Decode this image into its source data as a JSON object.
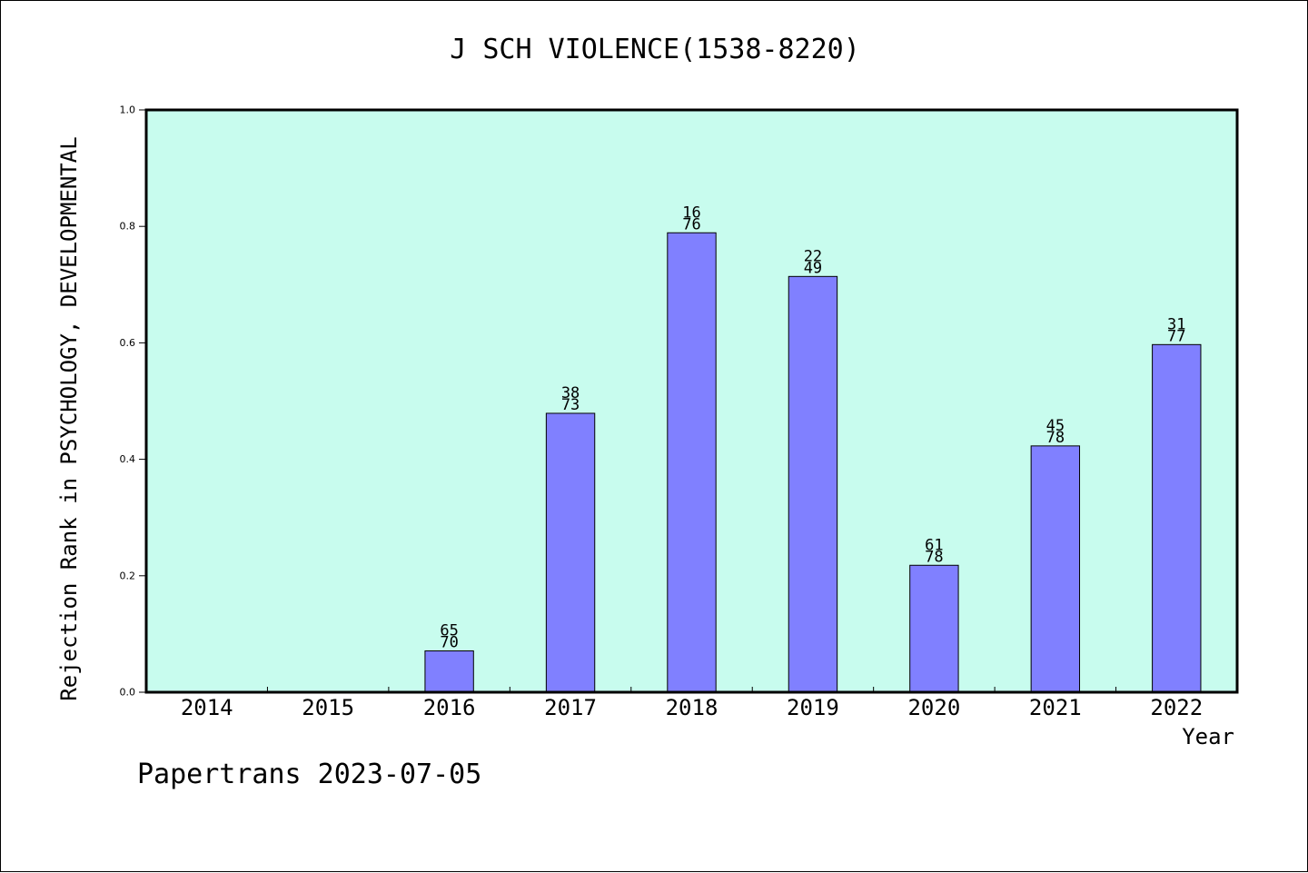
{
  "chart_data": {
    "type": "bar",
    "title": "J SCH VIOLENCE(1538-8220)",
    "xlabel": "Year",
    "ylabel": "Rejection Rank in PSYCHOLOGY, DEVELOPMENTAL",
    "categories": [
      "2014",
      "2015",
      "2016",
      "2017",
      "2018",
      "2019",
      "2020",
      "2021",
      "2022"
    ],
    "values": [
      null,
      null,
      0.071,
      0.479,
      0.789,
      0.714,
      0.218,
      0.423,
      0.597
    ],
    "bar_labels": [
      null,
      null,
      [
        "65",
        "70"
      ],
      [
        "38",
        "73"
      ],
      [
        "16",
        "76"
      ],
      [
        "22",
        "49"
      ],
      [
        "61",
        "78"
      ],
      [
        "45",
        "78"
      ],
      [
        "31",
        "77"
      ]
    ],
    "ylim": [
      0,
      1.0
    ],
    "yticks": [
      "0.0",
      "0.2",
      "0.4",
      "0.6",
      "0.8",
      "1.0"
    ],
    "grid": false,
    "colors": {
      "plot_bg": "#c8fcee",
      "bar": "#8080ff",
      "bar_edge": "#000000"
    }
  },
  "footer": "Papertrans 2023-07-05"
}
